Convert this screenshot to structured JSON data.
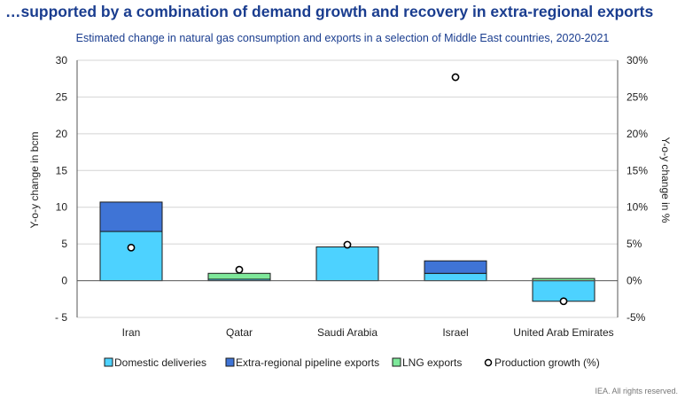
{
  "headline": "…supported by a combination of demand growth and recovery in extra-regional exports",
  "credit": "IEA. All rights reserved.",
  "chart_data": {
    "type": "bar",
    "stacked": true,
    "title": "Estimated change in natural gas consumption and exports in a selection of Middle East countries, 2020-2021",
    "categories": [
      "Iran",
      "Qatar",
      "Saudi Arabia",
      "Israel",
      "United Arab Emirates"
    ],
    "ylabel": "Y-o-y change in bcm",
    "y2label": "Y-o-y change in %",
    "ylim": [
      -5,
      30
    ],
    "y2lim": [
      -5,
      30
    ],
    "yticks": [
      "- 5",
      "0",
      "5",
      "10",
      "15",
      "20",
      "25",
      "30"
    ],
    "y2ticks": [
      "-5%",
      "0%",
      "5%",
      "10%",
      "15%",
      "20%",
      "25%",
      "30%"
    ],
    "grid": true,
    "legend_position": "bottom",
    "series": [
      {
        "name": "Domestic deliveries",
        "axis": "left",
        "color": "#4dd2ff",
        "values": [
          6.7,
          0.2,
          4.6,
          1.0,
          -2.8
        ]
      },
      {
        "name": "Extra-regional pipeline exports",
        "axis": "left",
        "color": "#3f74d6",
        "values": [
          4.0,
          0,
          0,
          1.7,
          0
        ]
      },
      {
        "name": "LNG exports",
        "axis": "left",
        "color": "#7ee89a",
        "values": [
          0,
          0.8,
          0,
          0,
          0.3
        ]
      },
      {
        "name": "Production growth (%)",
        "axis": "right",
        "type": "scatter",
        "values": [
          4.5,
          1.5,
          4.9,
          27.7,
          -2.8
        ]
      }
    ]
  }
}
